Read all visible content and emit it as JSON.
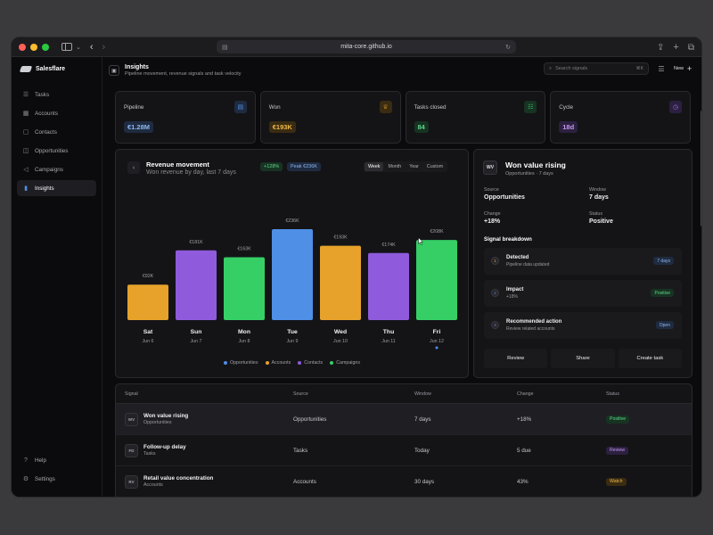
{
  "browser": {
    "url": "mita-core.github.io"
  },
  "sidebar": {
    "brand": "Salesflare",
    "items": [
      {
        "label": "Tasks"
      },
      {
        "label": "Accounts"
      },
      {
        "label": "Contacts"
      },
      {
        "label": "Opportunities"
      },
      {
        "label": "Campaigns"
      },
      {
        "label": "Insights"
      }
    ],
    "active": "Insights",
    "bottom": [
      {
        "label": "Help"
      },
      {
        "label": "Settings"
      }
    ]
  },
  "header": {
    "title": "Insights",
    "subtitle": "Pipeline movement, revenue signals and task velocity",
    "search_placeholder": "Search signals",
    "search_shortcut": "⌘K",
    "new_label": "New"
  },
  "kpis": [
    {
      "label": "Pipeline",
      "value": "€1.28M",
      "color": "#4f8fe6",
      "icon": "document-icon"
    },
    {
      "label": "Won",
      "value": "€193K",
      "color": "#e6a22a",
      "icon": "trophy-icon"
    },
    {
      "label": "Tasks closed",
      "value": "84",
      "color": "#3ec46d",
      "icon": "checklist-icon"
    },
    {
      "label": "Cycle",
      "value": "18d",
      "color": "#a06de6",
      "icon": "timer-icon"
    }
  ],
  "chart_panel": {
    "title": "Revenue movement",
    "subtitle": "Won revenue by day, last 7 days",
    "change_badge": "+128%",
    "peak_badge": "Peak €236K",
    "ranges": [
      "Week",
      "Month",
      "Year",
      "Custom"
    ],
    "active_range": "Week"
  },
  "chart_data": {
    "type": "bar",
    "categories": [
      "Sat",
      "Sun",
      "Mon",
      "Tue",
      "Wed",
      "Thu",
      "Fri"
    ],
    "dates": [
      "Jun 6",
      "Jun 7",
      "Jun 8",
      "Jun 9",
      "Jun 10",
      "Jun 11",
      "Jun 12"
    ],
    "values": [
      92,
      181,
      163,
      236,
      193,
      174,
      208
    ],
    "value_labels": [
      "€92K",
      "€181K",
      "€163K",
      "€236K",
      "€193K",
      "€174K",
      "€208K"
    ],
    "bar_series": [
      "Accounts",
      "Contacts",
      "Campaigns",
      "Opportunities",
      "Accounts",
      "Contacts",
      "Campaigns"
    ],
    "unit": "€K",
    "ylim": [
      0,
      236
    ],
    "grid": false,
    "legend": [
      {
        "name": "Opportunities",
        "color": "#4f8fe6"
      },
      {
        "name": "Accounts",
        "color": "#e6a22a"
      },
      {
        "name": "Contacts",
        "color": "#8f5bdc"
      },
      {
        "name": "Campaigns",
        "color": "#35cf66"
      }
    ],
    "legend_placement": "bottom",
    "selected_category": "Fri"
  },
  "detail": {
    "avatar": "WV",
    "title": "Won value rising",
    "subtitle": "Opportunities · 7 days",
    "fields": [
      {
        "key": "Source",
        "value": "Opportunities"
      },
      {
        "key": "Window",
        "value": "7 days"
      },
      {
        "key": "Change",
        "value": "+18%"
      },
      {
        "key": "Status",
        "value": "Positive"
      }
    ],
    "breakdown_title": "Signal breakdown",
    "steps": [
      {
        "num": "1",
        "title": "Detected",
        "sub": "Pipeline data updated",
        "tag": "7 days",
        "tag_color": "#4f8fe6"
      },
      {
        "num": "2",
        "title": "Impact",
        "sub": "+18%",
        "tag": "Positive",
        "tag_color": "#3ec46d"
      },
      {
        "num": "3",
        "title": "Recommended action",
        "sub": "Review related accounts",
        "tag": "Open",
        "tag_color": "#4f8fe6"
      }
    ],
    "actions": [
      "Review",
      "Share",
      "Create task"
    ]
  },
  "table": {
    "columns": [
      "Signal",
      "Source",
      "Window",
      "Change",
      "Status"
    ],
    "rows": [
      {
        "avatar": "WV",
        "name": "Won value rising",
        "sub": "Opportunities",
        "source": "Opportunities",
        "window": "7 days",
        "change": "+18%",
        "status": "Positive",
        "status_color": "#3ec46d",
        "selected": true
      },
      {
        "avatar": "FD",
        "name": "Follow-up delay",
        "sub": "Tasks",
        "source": "Tasks",
        "window": "Today",
        "change": "5 due",
        "status": "Review",
        "status_color": "#a06de6",
        "selected": false
      },
      {
        "avatar": "RV",
        "name": "Retail value concentration",
        "sub": "Accounts",
        "source": "Accounts",
        "window": "30 days",
        "change": "43%",
        "status": "Watch",
        "status_color": "#e6a22a",
        "selected": false
      }
    ]
  }
}
